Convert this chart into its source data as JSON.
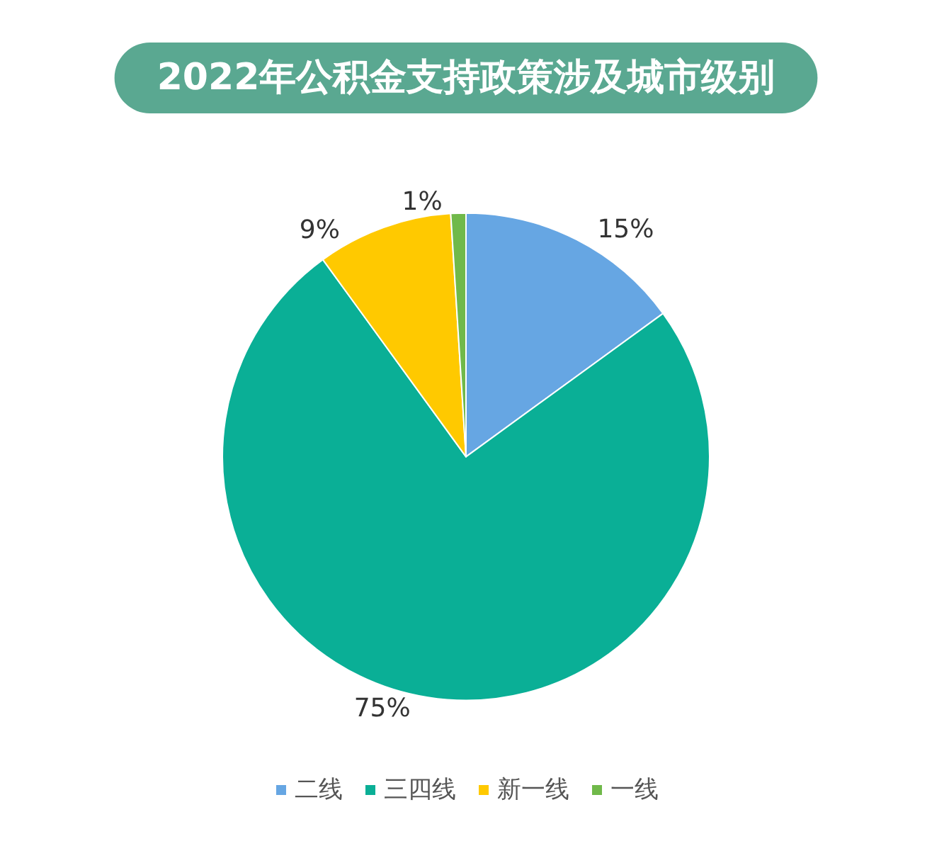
{
  "chart_data": {
    "type": "pie",
    "title": "2022年公积金支持政策涉及城市级别",
    "categories": [
      "二线",
      "三四线",
      "新一线",
      "一线"
    ],
    "values": [
      15,
      75,
      9,
      1
    ],
    "colors": [
      "#66a6e3",
      "#0aaf96",
      "#ffc900",
      "#70b94a"
    ],
    "value_labels": [
      "15%",
      "75%",
      "9%",
      "1%"
    ],
    "legend": "bottom"
  }
}
